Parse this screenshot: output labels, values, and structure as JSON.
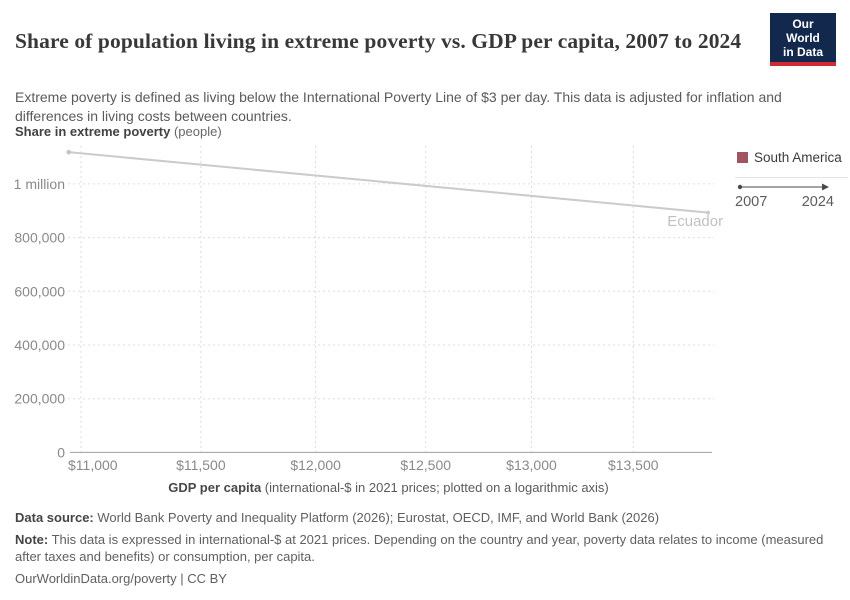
{
  "header": {
    "title": "Share of population living in extreme poverty vs. GDP per capita, 2007 to 2024",
    "subtitle": "Extreme poverty is defined as living below the International Poverty Line of $3 per day. This data is adjusted for inflation and differences in living costs between countries.",
    "logo": {
      "line1": "Our World",
      "line2": "in Data",
      "bg_color": "#12294d",
      "accent_color": "#cf2b34"
    }
  },
  "chart_data": {
    "type": "line",
    "title": "Share of population living in extreme poverty vs. GDP per capita, 2007 to 2024",
    "ylabel_bold": "Share in extreme poverty",
    "ylabel_unit": " (people)",
    "xlabel_bold": "GDP per capita",
    "xlabel_rest": " (international-$ in 2021 prices; plotted on a logarithmic axis)",
    "x_scale": "log",
    "x_domain": [
      10935,
      13900
    ],
    "y_domain": [
      0,
      1141000
    ],
    "grid": true,
    "x_ticks": [
      {
        "value": 11000,
        "label": "$11,000"
      },
      {
        "value": 11500,
        "label": "$11,500"
      },
      {
        "value": 12000,
        "label": "$12,000"
      },
      {
        "value": 12500,
        "label": "$12,500"
      },
      {
        "value": 13000,
        "label": "$13,000"
      },
      {
        "value": 13500,
        "label": "$13,500"
      }
    ],
    "y_ticks": [
      {
        "value": 0,
        "label": "0"
      },
      {
        "value": 200000,
        "label": "200,000"
      },
      {
        "value": 400000,
        "label": "400,000"
      },
      {
        "value": 600000,
        "label": "600,000"
      },
      {
        "value": 800000,
        "label": "800,000"
      },
      {
        "value": 1000000,
        "label": "1 million"
      }
    ],
    "series": [
      {
        "name": "Ecuador",
        "line_color": "#cbcbcb",
        "label_color": "#c1c1c1",
        "points": [
          {
            "year": 2007,
            "gdp_per_capita": 10950,
            "people_in_extreme_poverty": 1118000
          },
          {
            "year": 2024,
            "gdp_per_capita": 13880,
            "people_in_extreme_poverty": 893000
          }
        ]
      }
    ],
    "legend": {
      "position": "right",
      "entries": [
        {
          "label": "South America",
          "color": "#a2555e"
        }
      ],
      "year_start": "2007",
      "year_end": "2024"
    }
  },
  "footer": {
    "data_source_label": "Data source:",
    "data_source": " World Bank Poverty and Inequality Platform (2026); Eurostat, OECD, IMF, and World Bank (2026)",
    "note_label": "Note:",
    "note": " This data is expressed in international-$ at 2021 prices. Depending on the country and year, poverty data relates to income (measured after taxes and benefits) or consumption, per capita.",
    "citation": "OurWorldinData.org/poverty | CC BY"
  }
}
